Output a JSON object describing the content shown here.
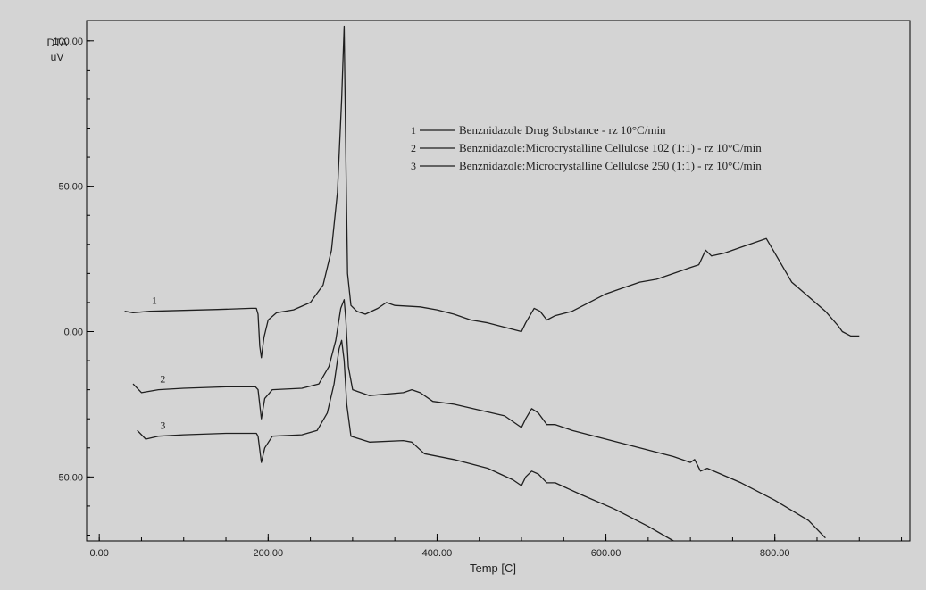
{
  "chart_data": {
    "type": "line",
    "title": "",
    "ylabel_line1": "DTA",
    "ylabel_line2": "uV",
    "xlabel": "Temp [C]",
    "xlim": [
      -15,
      960
    ],
    "ylim": [
      -72,
      107
    ],
    "x_ticks": [
      0,
      200,
      400,
      600,
      800
    ],
    "x_tick_labels": [
      "0.00",
      "200.00",
      "400.00",
      "600.00",
      "800.00"
    ],
    "y_ticks": [
      100,
      50,
      0,
      -50
    ],
    "y_tick_labels": [
      "100.00",
      "50.00",
      "0.00",
      "-50.00"
    ],
    "grid": false,
    "legend_position": "top-right",
    "colors": {
      "background": "#d4d4d4",
      "plot_area": "#d4d4d4",
      "line": "#1f1f1f",
      "axis": "#000000"
    },
    "series": [
      {
        "label": "1",
        "legend": "Benznidazole Drug Substance - rz 10°C/min",
        "points": [
          [
            30,
            7
          ],
          [
            40,
            6.5
          ],
          [
            60,
            7
          ],
          [
            100,
            7.3
          ],
          [
            140,
            7.6
          ],
          [
            180,
            8
          ],
          [
            186,
            8
          ],
          [
            188,
            6
          ],
          [
            190,
            -5
          ],
          [
            192,
            -9
          ],
          [
            195,
            -2
          ],
          [
            200,
            4
          ],
          [
            210,
            6.5
          ],
          [
            230,
            7.5
          ],
          [
            250,
            10
          ],
          [
            265,
            16
          ],
          [
            275,
            28
          ],
          [
            282,
            48
          ],
          [
            287,
            80
          ],
          [
            290,
            105
          ],
          [
            292,
            60
          ],
          [
            294,
            20
          ],
          [
            298,
            9
          ],
          [
            305,
            7
          ],
          [
            315,
            6
          ],
          [
            330,
            8
          ],
          [
            340,
            10
          ],
          [
            350,
            9
          ],
          [
            380,
            8.5
          ],
          [
            400,
            7.5
          ],
          [
            420,
            6
          ],
          [
            440,
            4
          ],
          [
            460,
            3
          ],
          [
            480,
            1.5
          ],
          [
            500,
            0
          ],
          [
            505,
            3
          ],
          [
            515,
            8
          ],
          [
            522,
            7
          ],
          [
            530,
            4
          ],
          [
            540,
            5.5
          ],
          [
            560,
            7
          ],
          [
            580,
            10
          ],
          [
            600,
            13
          ],
          [
            620,
            15
          ],
          [
            640,
            17
          ],
          [
            660,
            18
          ],
          [
            680,
            20
          ],
          [
            700,
            22
          ],
          [
            710,
            23
          ],
          [
            718,
            28
          ],
          [
            725,
            26
          ],
          [
            740,
            27
          ],
          [
            760,
            29
          ],
          [
            780,
            31
          ],
          [
            790,
            32
          ],
          [
            800,
            27
          ],
          [
            820,
            17
          ],
          [
            840,
            12
          ],
          [
            860,
            7
          ],
          [
            875,
            2
          ],
          [
            880,
            0
          ],
          [
            890,
            -1.5
          ],
          [
            900,
            -1.5
          ]
        ]
      },
      {
        "label": "2",
        "legend": "Benznidazole:Microcrystalline Cellulose 102 (1:1) - rz 10°C/min",
        "points": [
          [
            40,
            -18
          ],
          [
            50,
            -21
          ],
          [
            70,
            -20
          ],
          [
            100,
            -19.5
          ],
          [
            150,
            -19
          ],
          [
            185,
            -19
          ],
          [
            188,
            -20
          ],
          [
            192,
            -30
          ],
          [
            196,
            -23
          ],
          [
            205,
            -20
          ],
          [
            240,
            -19.5
          ],
          [
            260,
            -18
          ],
          [
            272,
            -12
          ],
          [
            280,
            -3
          ],
          [
            286,
            8
          ],
          [
            290,
            11
          ],
          [
            292,
            4
          ],
          [
            295,
            -12
          ],
          [
            300,
            -20
          ],
          [
            320,
            -22
          ],
          [
            360,
            -21
          ],
          [
            370,
            -20
          ],
          [
            380,
            -21
          ],
          [
            395,
            -24
          ],
          [
            420,
            -25
          ],
          [
            450,
            -27
          ],
          [
            480,
            -29
          ],
          [
            500,
            -33
          ],
          [
            505,
            -30
          ],
          [
            512,
            -26.5
          ],
          [
            520,
            -28
          ],
          [
            530,
            -32
          ],
          [
            540,
            -32
          ],
          [
            560,
            -34
          ],
          [
            600,
            -37
          ],
          [
            640,
            -40
          ],
          [
            680,
            -43
          ],
          [
            700,
            -45
          ],
          [
            705,
            -44
          ],
          [
            712,
            -48
          ],
          [
            720,
            -47
          ],
          [
            760,
            -52
          ],
          [
            800,
            -58
          ],
          [
            840,
            -65
          ],
          [
            860,
            -71
          ]
        ]
      },
      {
        "label": "3",
        "legend": "Benznidazole:Microcrystalline Cellulose 250 (1:1) - rz 10°C/min",
        "points": [
          [
            45,
            -34
          ],
          [
            55,
            -37
          ],
          [
            70,
            -36
          ],
          [
            100,
            -35.5
          ],
          [
            150,
            -35
          ],
          [
            186,
            -35
          ],
          [
            188,
            -36
          ],
          [
            192,
            -45
          ],
          [
            196,
            -40
          ],
          [
            205,
            -36
          ],
          [
            240,
            -35.5
          ],
          [
            258,
            -34
          ],
          [
            270,
            -28
          ],
          [
            278,
            -18
          ],
          [
            284,
            -6
          ],
          [
            287,
            -3
          ],
          [
            290,
            -10
          ],
          [
            293,
            -25
          ],
          [
            298,
            -36
          ],
          [
            320,
            -38
          ],
          [
            360,
            -37.5
          ],
          [
            370,
            -38
          ],
          [
            385,
            -42
          ],
          [
            420,
            -44
          ],
          [
            460,
            -47
          ],
          [
            490,
            -51
          ],
          [
            500,
            -53
          ],
          [
            505,
            -50
          ],
          [
            512,
            -48
          ],
          [
            520,
            -49
          ],
          [
            530,
            -52
          ],
          [
            540,
            -52
          ],
          [
            570,
            -56
          ],
          [
            610,
            -61
          ],
          [
            650,
            -67
          ],
          [
            680,
            -72
          ]
        ]
      }
    ]
  }
}
